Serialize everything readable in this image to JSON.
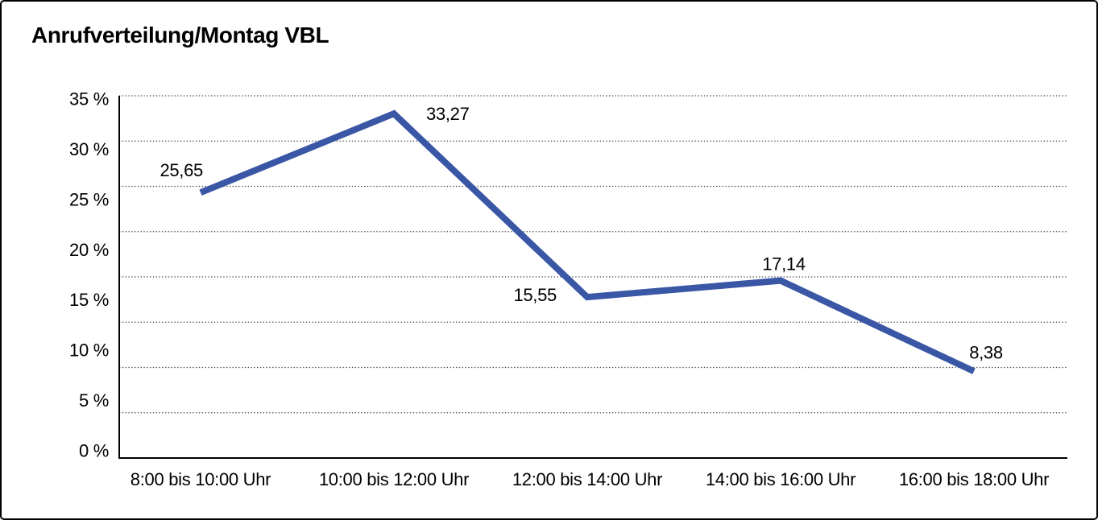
{
  "window": {
    "title": "Anrufverteilung/Montag VBL"
  },
  "chart_data": {
    "type": "line",
    "title": "Anrufverteilung/Montag VBL",
    "categories": [
      "8:00 bis 10:00 Uhr",
      "10:00 bis 12:00 Uhr",
      "12:00 bis 14:00 Uhr",
      "14:00 bis 16:00 Uhr",
      "16:00 bis 18:00 Uhr"
    ],
    "values": [
      25.65,
      33.27,
      15.55,
      17.14,
      8.38
    ],
    "value_labels": [
      "25,65",
      "33,27",
      "15,55",
      "17,14",
      "8,38"
    ],
    "y_ticks": [
      "35 %",
      "30 %",
      "25 %",
      "20 %",
      "15 %",
      "10 %",
      "5 %",
      "0 %"
    ],
    "ylim": [
      0,
      35
    ],
    "xlabel": "",
    "ylabel": "",
    "legend": "none",
    "grid": "horizontal-dotted",
    "line_color": "#3A57A6",
    "axis_color": "#000000",
    "gridline_color": "#4A4A4A"
  }
}
